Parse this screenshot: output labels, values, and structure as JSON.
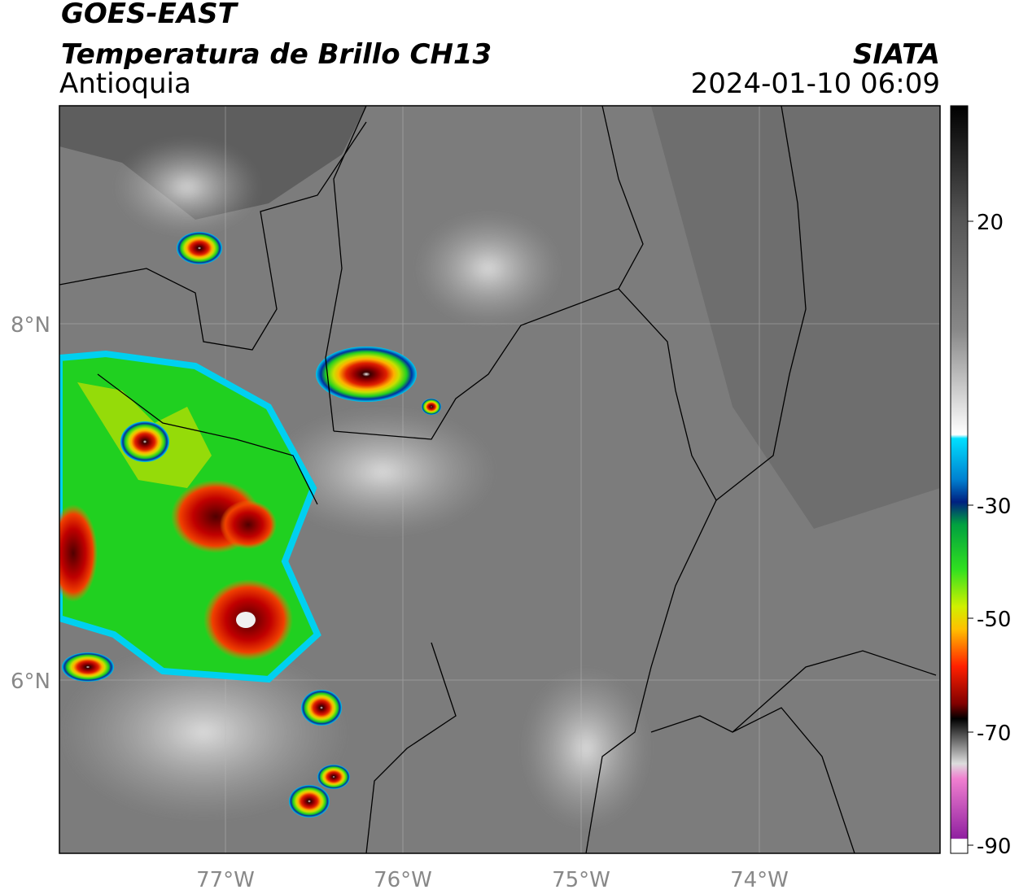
{
  "header": {
    "title": "GOES-EAST",
    "subtitle": "Temperatura de Brillo CH13",
    "region": "Antioquia",
    "source": "SIATA",
    "timestamp": "2024-01-10 06:09"
  },
  "map": {
    "lat_labels": [
      "8°N",
      "6°N"
    ],
    "lon_labels": [
      "77°W",
      "76°W",
      "75°W",
      "74°W"
    ]
  },
  "colorbar": {
    "ticks": [
      "20",
      "-30",
      "-50",
      "-70",
      "-90"
    ]
  }
}
